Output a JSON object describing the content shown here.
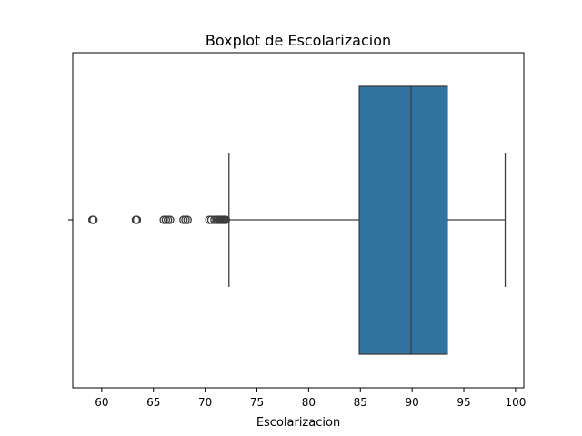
{
  "chart_data": {
    "type": "boxplot",
    "title": "Boxplot de Escolarizacion",
    "xlabel": "Escolarizacion",
    "ylabel": "",
    "xlim": [
      57.2,
      100.8
    ],
    "xticks": [
      60,
      65,
      70,
      75,
      80,
      85,
      90,
      95,
      100
    ],
    "orientation": "horizontal",
    "grid": false,
    "box": {
      "whisker_low": 72.3,
      "q1": 84.9,
      "median": 89.9,
      "q3": 93.4,
      "whisker_high": 99.0,
      "color": "#3274a1",
      "line_color": "#3d3d3d"
    },
    "outliers": [
      59.1,
      59.2,
      63.3,
      63.4,
      66.0,
      66.2,
      66.4,
      66.6,
      67.9,
      68.1,
      68.3,
      70.4,
      70.6,
      70.9,
      71.1,
      71.2,
      71.4,
      71.5,
      71.6,
      71.7,
      71.8,
      71.9,
      72.0
    ]
  }
}
